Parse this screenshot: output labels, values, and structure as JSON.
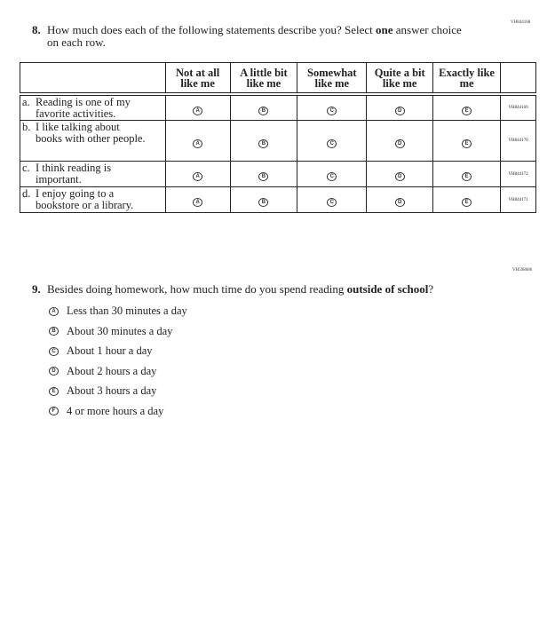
{
  "q8": {
    "code": "VH844168",
    "number": "8.",
    "text_parts": [
      "How much does each of the following statements describe you? Select ",
      "one",
      " answer choice on each row."
    ],
    "columns": [
      "Not at all like me",
      "A little bit like me",
      "Somewhat like me",
      "Quite a bit like me",
      "Exactly like me"
    ],
    "bubble_letters": [
      "A",
      "B",
      "C",
      "D",
      "E"
    ],
    "rows": [
      {
        "letter": "a.",
        "line1": "Reading is one of my",
        "rest": "favorite activities.",
        "code": "VH844169"
      },
      {
        "letter": "b.",
        "line1": "I like talking about",
        "rest": "books with other people.",
        "code": "VH844170"
      },
      {
        "letter": "c.",
        "line1": "I think reading is",
        "rest": "important.",
        "code": "VH844172"
      },
      {
        "letter": "d.",
        "line1": "I enjoy going to a",
        "rest": "bookstore or a library.",
        "code": "VH844171"
      }
    ]
  },
  "q9": {
    "code": "VH598686",
    "number": "9.",
    "text_parts": [
      "Besides doing homework, how much time do you spend reading ",
      "outside of school",
      "?"
    ],
    "options": [
      {
        "letter": "A",
        "label": "Less than 30 minutes a day"
      },
      {
        "letter": "B",
        "label": "About 30 minutes a day"
      },
      {
        "letter": "C",
        "label": "About 1 hour a day"
      },
      {
        "letter": "D",
        "label": "About 2 hours a day"
      },
      {
        "letter": "E",
        "label": "About 3 hours a day"
      },
      {
        "letter": "F",
        "label": "4 or more hours a day"
      }
    ]
  }
}
